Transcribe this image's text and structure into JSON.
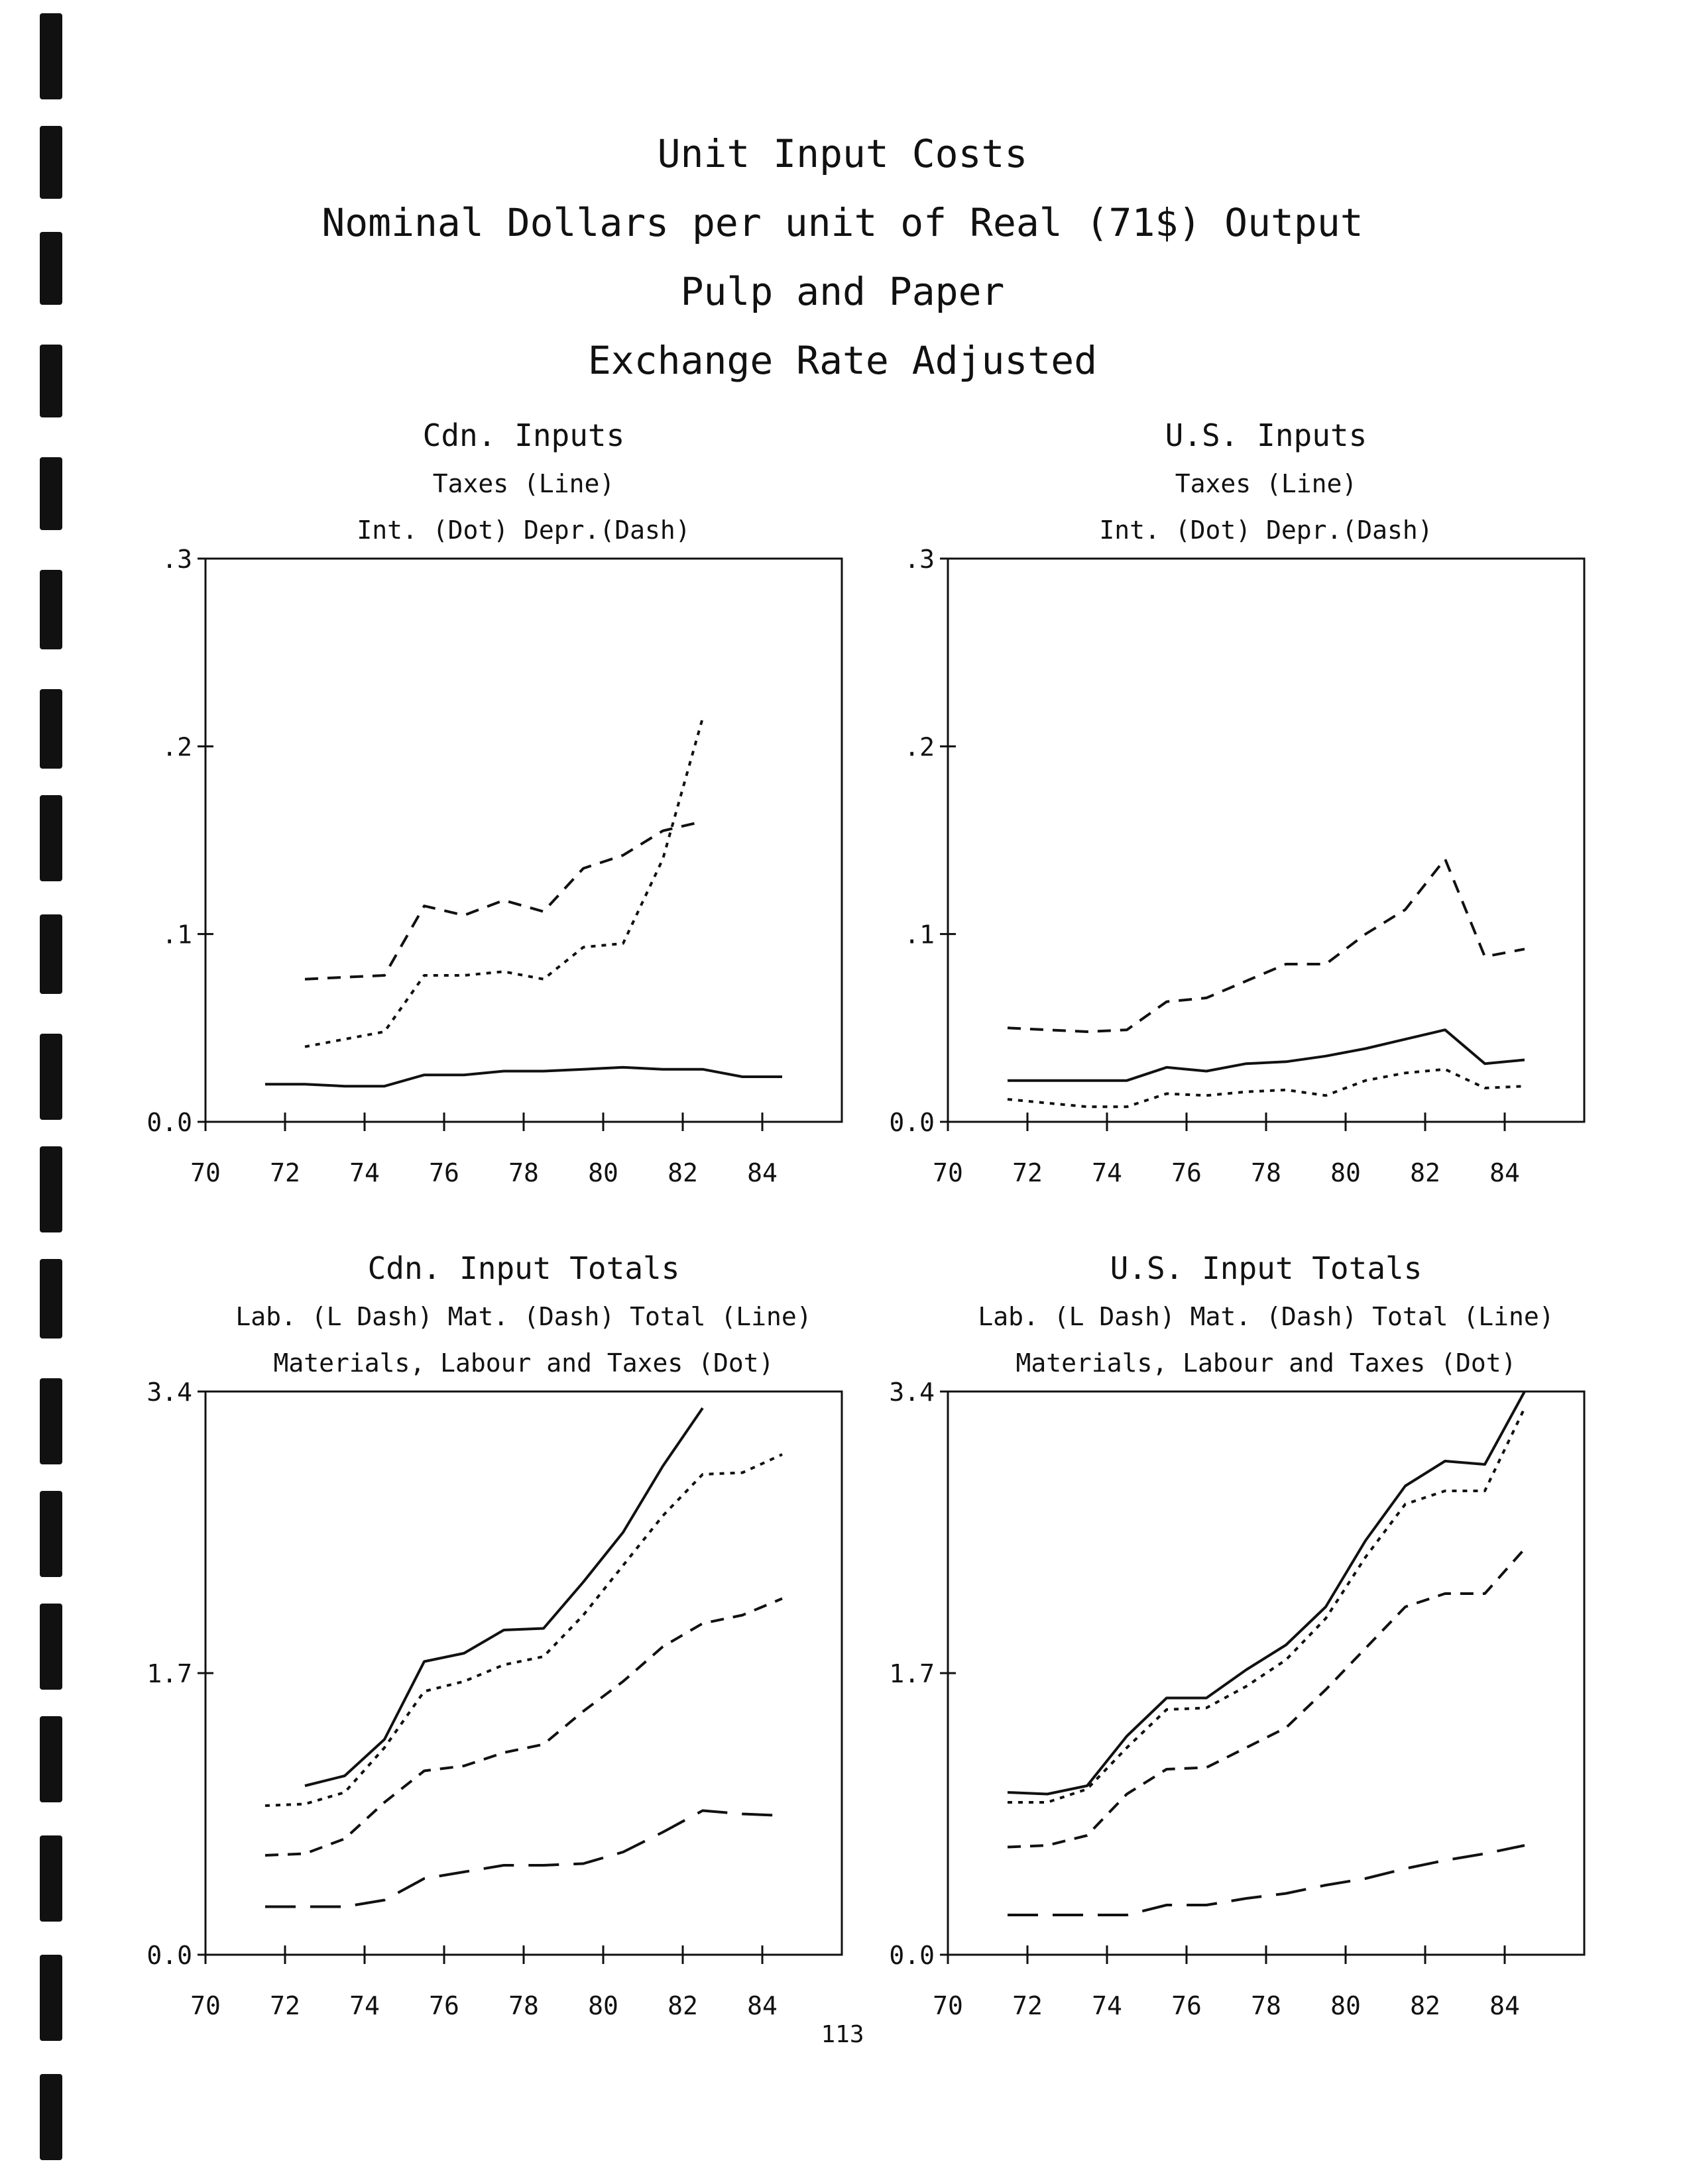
{
  "page": {
    "title_lines": [
      "Unit Input Costs",
      "Nominal Dollars per unit of Real (71$) Output",
      "Pulp and Paper",
      "Exchange Rate Adjusted"
    ],
    "page_number": "113"
  },
  "chart_data": [
    {
      "type": "line",
      "title": "Cdn. Inputs",
      "subtitle_lines": [
        "Taxes (Line)",
        "Int. (Dot)      Depr.(Dash)"
      ],
      "xticks": [
        "70",
        "72",
        "74",
        "76",
        "78",
        "80",
        "82",
        "84"
      ],
      "yticks": [
        ".3",
        ".2",
        ".1",
        "0.0"
      ],
      "ylim": [
        0,
        0.3
      ],
      "xlim": [
        70,
        86
      ],
      "series": [
        {
          "style": "solid",
          "x": [
            71.5,
            72.5,
            73.5,
            74.5,
            75.5,
            76.5,
            77.5,
            78.5,
            79.5,
            80.5,
            81.5,
            82.5,
            83.5,
            84.5
          ],
          "values": [
            0.02,
            0.02,
            0.019,
            0.019,
            0.025,
            0.025,
            0.027,
            0.027,
            0.028,
            0.029,
            0.028,
            0.028,
            0.024,
            0.024
          ]
        },
        {
          "style": "dash",
          "x": [
            72.5,
            73.5,
            74.5,
            75.5,
            76.5,
            77.5,
            78.5,
            79.5,
            80.5,
            81.5,
            82.5
          ],
          "values": [
            0.076,
            0.077,
            0.078,
            0.115,
            0.11,
            0.118,
            0.112,
            0.135,
            0.142,
            0.155,
            0.16
          ]
        },
        {
          "style": "dot",
          "x": [
            72.5,
            73.5,
            74.5,
            75.5,
            76.5,
            77.5,
            78.5,
            79.5,
            80.5,
            81.5,
            82.5
          ],
          "values": [
            0.04,
            0.044,
            0.048,
            0.078,
            0.078,
            0.08,
            0.076,
            0.093,
            0.095,
            0.14,
            0.215
          ]
        }
      ]
    },
    {
      "type": "line",
      "title": "U.S. Inputs",
      "subtitle_lines": [
        "Taxes (Line)",
        "Int. (Dot)      Depr.(Dash)"
      ],
      "xticks": [
        "70",
        "72",
        "74",
        "76",
        "78",
        "80",
        "82",
        "84"
      ],
      "yticks": [
        ".3",
        ".2",
        ".1",
        "0.0"
      ],
      "ylim": [
        0,
        0.3
      ],
      "xlim": [
        70,
        86
      ],
      "series": [
        {
          "style": "solid",
          "x": [
            71.5,
            72.5,
            73.5,
            74.5,
            75.5,
            76.5,
            77.5,
            78.5,
            79.5,
            80.5,
            81.5,
            82.5,
            83.5,
            84.5
          ],
          "values": [
            0.022,
            0.022,
            0.022,
            0.022,
            0.029,
            0.027,
            0.031,
            0.032,
            0.035,
            0.039,
            0.044,
            0.049,
            0.031,
            0.033
          ]
        },
        {
          "style": "dash",
          "x": [
            71.5,
            72.5,
            73.5,
            74.5,
            75.5,
            76.5,
            77.5,
            78.5,
            79.5,
            80.5,
            81.5,
            82.5,
            83.5,
            84.5
          ],
          "values": [
            0.05,
            0.049,
            0.048,
            0.049,
            0.064,
            0.066,
            0.075,
            0.084,
            0.084,
            0.1,
            0.113,
            0.14,
            0.088,
            0.092
          ]
        },
        {
          "style": "dot",
          "x": [
            71.5,
            72.5,
            73.5,
            74.5,
            75.5,
            76.5,
            77.5,
            78.5,
            79.5,
            80.5,
            81.5,
            82.5,
            83.5,
            84.5
          ],
          "values": [
            0.012,
            0.01,
            0.008,
            0.008,
            0.015,
            0.014,
            0.016,
            0.017,
            0.014,
            0.022,
            0.026,
            0.028,
            0.018,
            0.019
          ]
        }
      ]
    },
    {
      "type": "line",
      "title": "Cdn. Input Totals",
      "subtitle_lines": [
        "Lab. (L Dash)    Mat. (Dash)    Total (Line)",
        "Materials, Labour and Taxes (Dot)"
      ],
      "xticks": [
        "70",
        "72",
        "74",
        "76",
        "78",
        "80",
        "82",
        "84"
      ],
      "yticks": [
        "3.4",
        "1.7",
        "0.0"
      ],
      "ylim": [
        0,
        3.4
      ],
      "xlim": [
        70,
        86
      ],
      "series": [
        {
          "style": "solid",
          "x": [
            72.5,
            73.5,
            74.5,
            75.5,
            76.5,
            77.5,
            78.5,
            79.5,
            80.5,
            81.5,
            82.5
          ],
          "values": [
            1.02,
            1.08,
            1.3,
            1.77,
            1.82,
            1.96,
            1.97,
            2.25,
            2.55,
            2.95,
            3.3
          ]
        },
        {
          "style": "dot",
          "x": [
            71.5,
            72.5,
            73.5,
            74.5,
            75.5,
            76.5,
            77.5,
            78.5,
            79.5,
            80.5,
            81.5,
            82.5,
            83.5,
            84.5
          ],
          "values": [
            0.9,
            0.91,
            0.98,
            1.25,
            1.59,
            1.65,
            1.75,
            1.8,
            2.05,
            2.35,
            2.65,
            2.9,
            2.91,
            3.02
          ]
        },
        {
          "style": "dash",
          "x": [
            71.5,
            72.5,
            73.5,
            74.5,
            75.5,
            76.5,
            77.5,
            78.5,
            79.5,
            80.5,
            81.5,
            82.5,
            83.5,
            84.5
          ],
          "values": [
            0.6,
            0.61,
            0.7,
            0.92,
            1.11,
            1.14,
            1.22,
            1.27,
            1.47,
            1.65,
            1.86,
            2.0,
            2.05,
            2.15
          ]
        },
        {
          "style": "longdash",
          "x": [
            71.5,
            72.5,
            73.5,
            74.5,
            75.5,
            76.5,
            77.5,
            78.5,
            79.5,
            80.5,
            81.5,
            82.5,
            83.5,
            84.5
          ],
          "values": [
            0.29,
            0.29,
            0.29,
            0.33,
            0.46,
            0.5,
            0.54,
            0.54,
            0.55,
            0.62,
            0.74,
            0.87,
            0.85,
            0.84
          ]
        }
      ]
    },
    {
      "type": "line",
      "title": "U.S. Input Totals",
      "subtitle_lines": [
        "Lab. (L Dash)    Mat. (Dash)    Total (Line)",
        "Materials, Labour and Taxes (Dot)"
      ],
      "xticks": [
        "70",
        "72",
        "74",
        "76",
        "78",
        "80",
        "82",
        "84"
      ],
      "yticks": [
        "3.4",
        "1.7",
        "0.0"
      ],
      "ylim": [
        0,
        3.4
      ],
      "xlim": [
        70,
        86
      ],
      "series": [
        {
          "style": "solid",
          "x": [
            71.5,
            72.5,
            73.5,
            74.5,
            75.5,
            76.5,
            77.5,
            78.5,
            79.5,
            80.5,
            81.5,
            82.5,
            83.5,
            84.5
          ],
          "values": [
            0.98,
            0.97,
            1.02,
            1.32,
            1.55,
            1.55,
            1.72,
            1.87,
            2.1,
            2.5,
            2.83,
            2.98,
            2.96,
            3.4
          ]
        },
        {
          "style": "dot",
          "x": [
            71.5,
            72.5,
            73.5,
            74.5,
            75.5,
            76.5,
            77.5,
            78.5,
            79.5,
            80.5,
            81.5,
            82.5,
            83.5,
            84.5
          ],
          "values": [
            0.92,
            0.92,
            1.0,
            1.25,
            1.48,
            1.49,
            1.62,
            1.78,
            2.03,
            2.4,
            2.72,
            2.8,
            2.8,
            3.3
          ]
        },
        {
          "style": "dash",
          "x": [
            71.5,
            72.5,
            73.5,
            74.5,
            75.5,
            76.5,
            77.5,
            78.5,
            79.5,
            80.5,
            81.5,
            82.5,
            83.5,
            84.5
          ],
          "values": [
            0.65,
            0.66,
            0.72,
            0.97,
            1.12,
            1.13,
            1.25,
            1.37,
            1.6,
            1.85,
            2.1,
            2.18,
            2.18,
            2.45
          ]
        },
        {
          "style": "longdash",
          "x": [
            71.5,
            72.5,
            73.5,
            74.5,
            75.5,
            76.5,
            77.5,
            78.5,
            79.5,
            80.5,
            81.5,
            82.5,
            83.5,
            84.5
          ],
          "values": [
            0.24,
            0.24,
            0.24,
            0.24,
            0.3,
            0.3,
            0.34,
            0.37,
            0.42,
            0.46,
            0.52,
            0.57,
            0.61,
            0.66
          ]
        }
      ]
    }
  ]
}
